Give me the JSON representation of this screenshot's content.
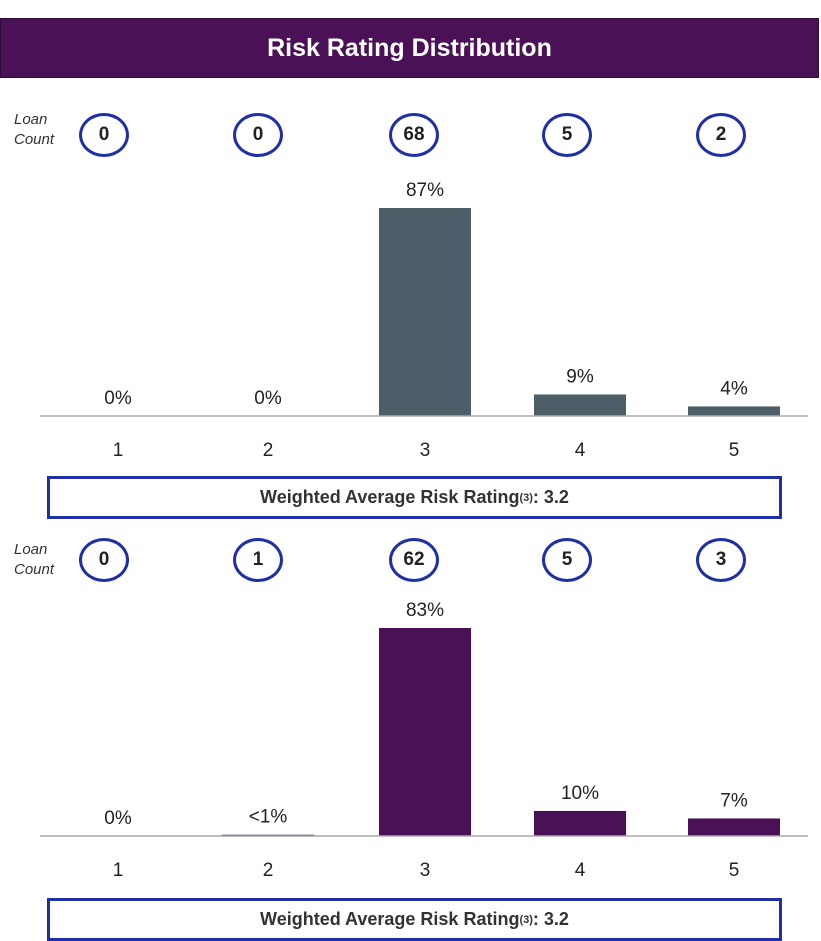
{
  "title": "Risk Rating Distribution",
  "colors": {
    "title_bg": "#4a1157",
    "circle_border": "#1f2fa8",
    "box_border": "#1f2fa8"
  },
  "loan_count_label": [
    "Loan",
    "Count"
  ],
  "wavg_label": "Weighted Average Risk Rating",
  "wavg_sup": "(3)",
  "chart_data": [
    {
      "type": "bar",
      "categories": [
        "1",
        "2",
        "3",
        "4",
        "5"
      ],
      "values": [
        0,
        0,
        87,
        9,
        4
      ],
      "data_labels": [
        "0%",
        "0%",
        "87%",
        "9%",
        "4%"
      ],
      "loan_counts": [
        "0",
        "0",
        "68",
        "5",
        "2"
      ],
      "weighted_average": ": 3.2",
      "color": "#4d5e68",
      "ylim": [
        0,
        87
      ]
    },
    {
      "type": "bar",
      "categories": [
        "1",
        "2",
        "3",
        "4",
        "5"
      ],
      "values": [
        0,
        0.5,
        83,
        10,
        7
      ],
      "data_labels": [
        "0%",
        "<1%",
        "83%",
        "10%",
        "7%"
      ],
      "loan_counts": [
        "0",
        "1",
        "62",
        "5",
        "3"
      ],
      "weighted_average": ": 3.2",
      "color": "#4a1157",
      "ylim": [
        0,
        83
      ]
    }
  ]
}
